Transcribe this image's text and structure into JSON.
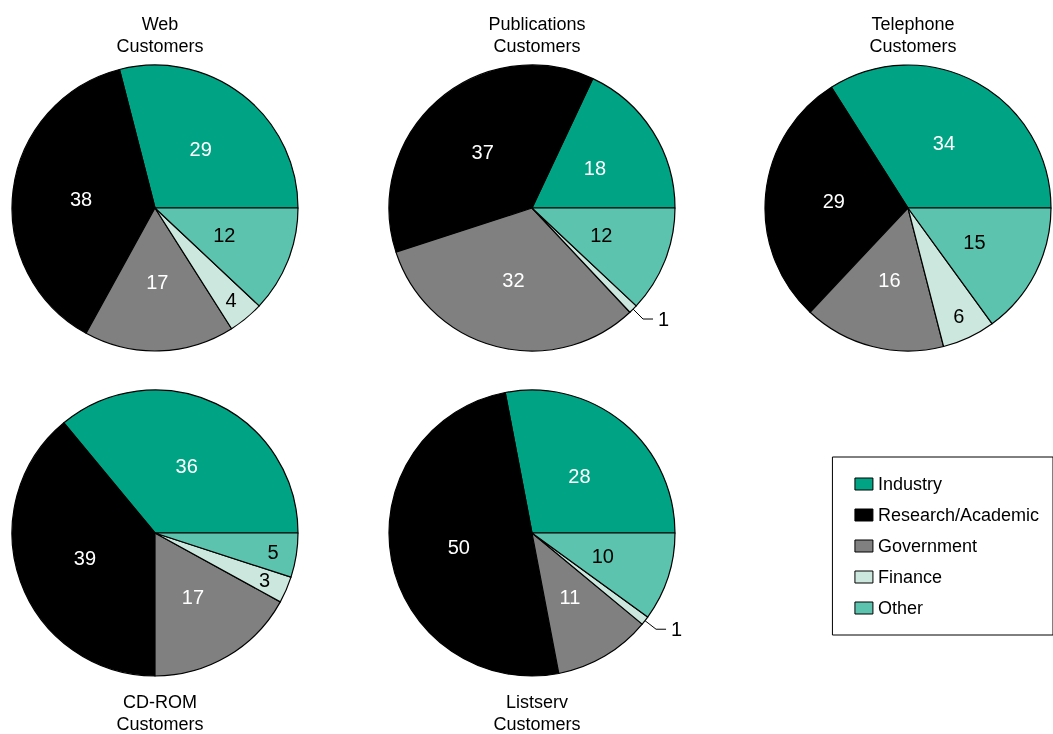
{
  "chart_data": [
    {
      "type": "pie",
      "title": "Web\nCustomers",
      "categories": [
        null,
        null,
        null,
        null,
        null
      ],
      "values": [
        29,
        38,
        17,
        4,
        12
      ],
      "colors": [
        "#00a383",
        "#000000",
        "#808080",
        "#cce8de",
        "#5cc4ae"
      ],
      "data_labels": true,
      "legend": false
    },
    {
      "type": "pie",
      "title": "Publications\nCustomers",
      "categories": [
        null,
        null,
        null,
        null,
        null
      ],
      "values": [
        18,
        37,
        32,
        1,
        12
      ],
      "colors": [
        "#00a383",
        "#000000",
        "#808080",
        "#cce8de",
        "#5cc4ae"
      ],
      "data_labels": true,
      "legend": false
    },
    {
      "type": "pie",
      "title": "Telephone\nCustomers",
      "categories": [
        null,
        null,
        null,
        null,
        null
      ],
      "values": [
        34,
        29,
        16,
        6,
        15
      ],
      "colors": [
        "#00a383",
        "#000000",
        "#808080",
        "#cce8de",
        "#5cc4ae"
      ],
      "data_labels": true,
      "legend": false
    },
    {
      "type": "pie",
      "title": "CD-ROM\nCustomers",
      "categories": [
        null,
        null,
        null,
        null,
        null
      ],
      "values": [
        36,
        39,
        17,
        3,
        5
      ],
      "colors": [
        "#00a383",
        "#000000",
        "#808080",
        "#cce8de",
        "#5cc4ae"
      ],
      "data_labels": true,
      "legend": false
    },
    {
      "type": "pie",
      "title": "Listserv\nCustomers",
      "categories": [
        "Industry",
        "Research/Academic",
        "Government",
        "Finance",
        "Other"
      ],
      "values": [
        28,
        50,
        11,
        1,
        10
      ],
      "colors": [
        "#00a383",
        "#000000",
        "#808080",
        "#cce8de",
        "#5cc4ae"
      ],
      "data_labels": true,
      "legend": "right"
    }
  ]
}
